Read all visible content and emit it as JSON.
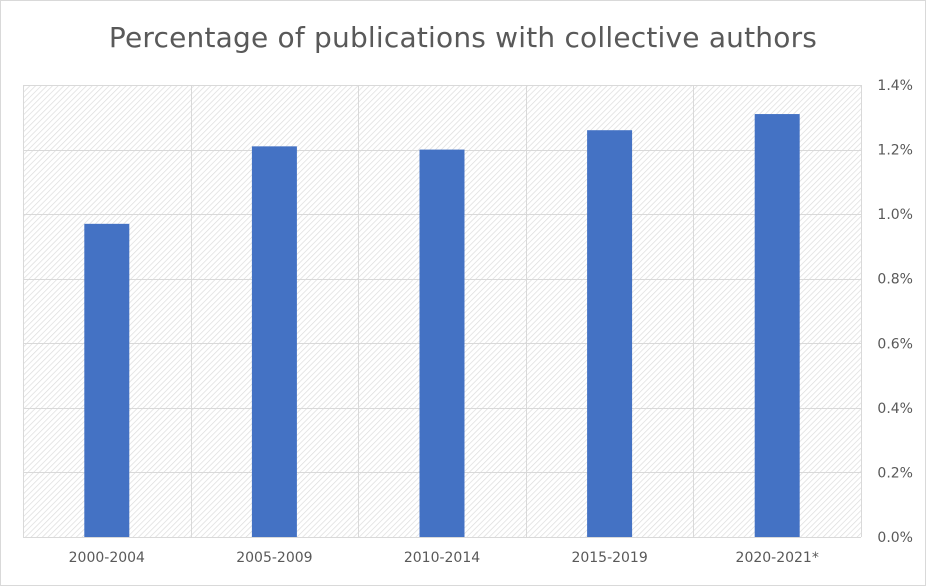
{
  "chart_data": {
    "type": "bar",
    "title": "Percentage of publications with collective authors",
    "categories": [
      "2000-2004",
      "2005-2009",
      "2010-2014",
      "2015-2019",
      "2020-2021*"
    ],
    "values": [
      0.97,
      1.21,
      1.2,
      1.26,
      1.31
    ],
    "ylim": [
      0,
      1.4
    ],
    "yticks": [
      "0.0%",
      "0.2%",
      "0.4%",
      "0.6%",
      "0.8%",
      "1.0%",
      "1.2%",
      "1.4%"
    ],
    "ytick_values": [
      0,
      0.2,
      0.4,
      0.6,
      0.8,
      1.0,
      1.2,
      1.4
    ],
    "y_axis_side": "right",
    "grid": true,
    "plot_background": "hatched-light-gray",
    "bar_color": "#4472c4",
    "grid_color": "#d9d9d9"
  }
}
